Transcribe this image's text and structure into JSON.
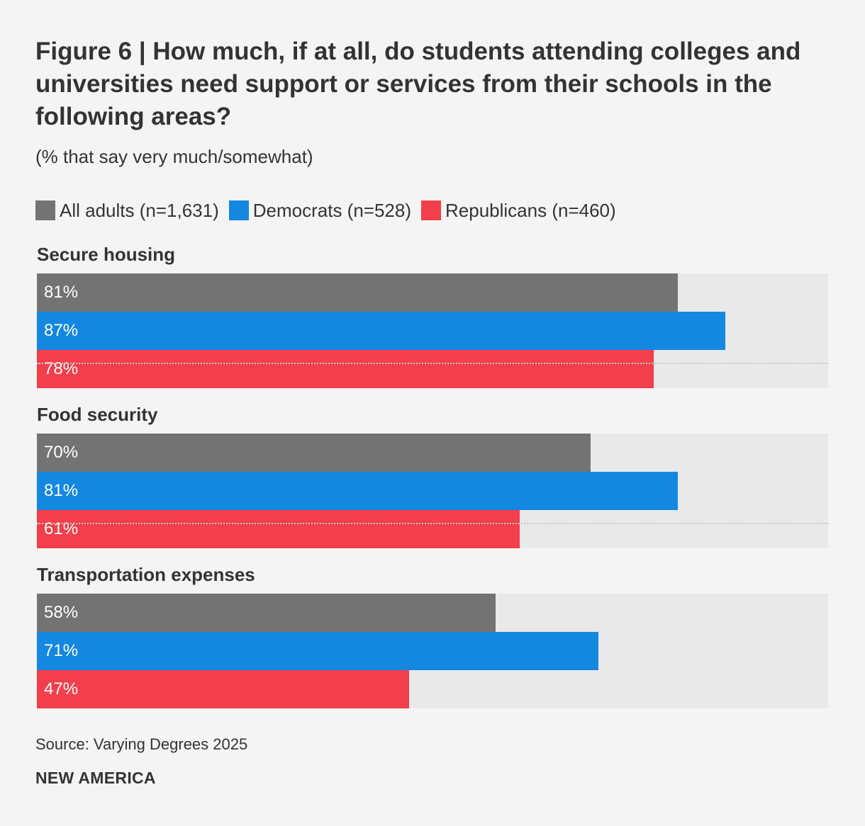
{
  "title": "Figure 6 | How much, if at all, do students attending colleges and universities need support or services from their schools in the following areas?",
  "subtitle": "(% that say very much/somewhat)",
  "source": "Source: Varying Degrees 2025",
  "brand": "NEW AMERICA",
  "chart_data": {
    "type": "bar",
    "orientation": "horizontal",
    "title": "Figure 6 | How much, if at all, do students attending colleges and universities need support or services from their schools in the following areas?",
    "subtitle": "(% that say very much/somewhat)",
    "xlim": [
      0,
      100
    ],
    "legend_position": "top-left",
    "grid": false,
    "categories": [
      "Secure housing",
      "Food security",
      "Transportation expenses"
    ],
    "series": [
      {
        "name": "All adults (n=1,631)",
        "color": "#737373",
        "values": [
          81,
          70,
          58
        ],
        "labels": [
          "81%",
          "70%",
          "58%"
        ]
      },
      {
        "name": "Democrats (n=528)",
        "color": "#1487e0",
        "values": [
          87,
          81,
          71
        ],
        "labels": [
          "87%",
          "81%",
          "71%"
        ]
      },
      {
        "name": "Republicans (n=460)",
        "color": "#f23f4b",
        "values": [
          78,
          61,
          47
        ],
        "labels": [
          "78%",
          "61%",
          "47%"
        ]
      }
    ]
  }
}
